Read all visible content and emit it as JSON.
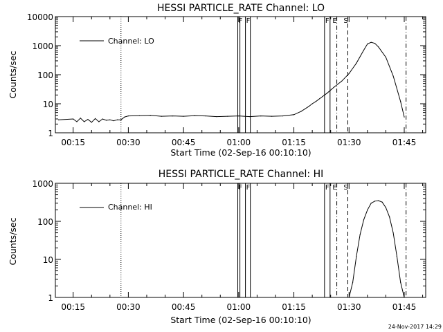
{
  "chart_data": [
    {
      "type": "line",
      "title": "HESSI PARTICLE_RATE Channel: LO",
      "xlabel": "Start Time (02-Sep-16 00:10:10)",
      "ylabel": "Counts/sec",
      "yscale": "log",
      "ylim": [
        1,
        10000
      ],
      "xlim": [
        "00:10:10",
        "01:50:50"
      ],
      "x_ticks": [
        "00:15",
        "00:30",
        "00:45",
        "01:00",
        "01:15",
        "01:30",
        "01:45"
      ],
      "y_ticks": [
        "1",
        "10",
        "100",
        "1000",
        "10000"
      ],
      "legend": {
        "position": "top-left",
        "entries": [
          "Channel: LO"
        ]
      },
      "series": [
        {
          "name": "Channel: LO",
          "x": [
            "00:11",
            "00:15",
            "00:16",
            "00:17",
            "00:18",
            "00:19",
            "00:20",
            "00:21",
            "00:22",
            "00:23",
            "00:24",
            "00:25",
            "00:26",
            "00:27",
            "00:28",
            "00:29",
            "00:30",
            "00:33",
            "00:36",
            "00:39",
            "00:42",
            "00:45",
            "00:48",
            "00:51",
            "00:54",
            "00:57",
            "01:00",
            "01:03",
            "01:06",
            "01:09",
            "01:12",
            "01:15",
            "01:17",
            "01:19",
            "01:20",
            "01:21",
            "01:22",
            "01:24",
            "01:26",
            "01:28",
            "01:30",
            "01:32",
            "01:34",
            "01:35",
            "01:36",
            "01:37",
            "01:38",
            "01:40",
            "01:42",
            "01:44",
            "01:45"
          ],
          "y": [
            2.8,
            3.0,
            2.4,
            3.2,
            2.4,
            2.9,
            2.3,
            3.1,
            2.4,
            3.0,
            2.7,
            2.8,
            2.6,
            2.8,
            2.8,
            3.5,
            3.8,
            3.9,
            4.0,
            3.7,
            3.8,
            3.7,
            3.9,
            3.8,
            3.6,
            3.7,
            3.8,
            3.6,
            3.8,
            3.7,
            3.8,
            4.2,
            5.5,
            8.0,
            10,
            12,
            15,
            23,
            38,
            60,
            110,
            250,
            700,
            1150,
            1300,
            1200,
            900,
            400,
            90,
            12,
            3.5
          ]
        }
      ]
    },
    {
      "type": "line",
      "title": "HESSI PARTICLE_RATE Channel: HI",
      "xlabel": "Start Time (02-Sep-16 00:10:10)",
      "ylabel": "Counts/sec",
      "yscale": "log",
      "ylim": [
        1,
        1000
      ],
      "xlim": [
        "00:10:10",
        "01:50:50"
      ],
      "x_ticks": [
        "00:15",
        "00:30",
        "00:45",
        "01:00",
        "01:15",
        "01:30",
        "01:45"
      ],
      "y_ticks": [
        "1",
        "10",
        "100",
        "1000"
      ],
      "legend": {
        "position": "top-left",
        "entries": [
          "Channel: HI"
        ]
      },
      "series": [
        {
          "name": "Channel: HI",
          "x": [
            "01:30:00",
            "01:31",
            "01:32",
            "01:33",
            "01:34",
            "01:35",
            "01:36",
            "01:37",
            "01:38",
            "01:39",
            "01:40",
            "01:41",
            "01:42",
            "01:43",
            "01:44",
            "01:45"
          ],
          "y": [
            1,
            2.5,
            12,
            45,
            110,
            200,
            300,
            340,
            350,
            320,
            230,
            130,
            50,
            12,
            2.5,
            1
          ]
        }
      ]
    }
  ],
  "markers": {
    "dotted": "00:28",
    "flag_bars": [
      {
        "label": "F",
        "from": "00:59:45",
        "to": "01:00:20"
      },
      {
        "label": "F",
        "from": "01:01:50",
        "to": "01:03:10"
      },
      {
        "label": "F",
        "from": "01:23:20",
        "to": "01:24:50"
      }
    ],
    "lines": [
      {
        "label": "E",
        "at": "01:26:40",
        "style": "dash-dot"
      },
      {
        "label": "S",
        "at": "01:29:40",
        "style": "dashed"
      }
    ],
    "end_line": {
      "at": "01:45:30",
      "style": "dash-dot"
    }
  },
  "footer": {
    "timestamp": "24-Nov-2017 14:29"
  }
}
